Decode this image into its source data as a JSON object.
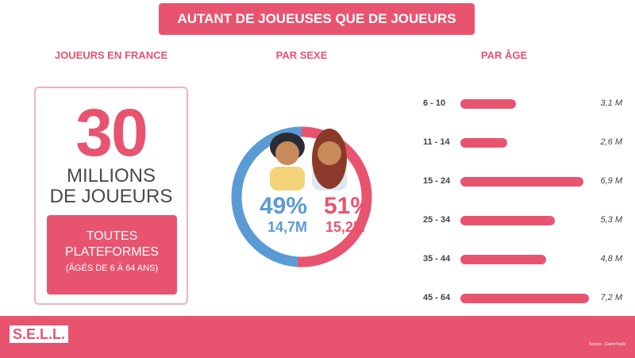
{
  "title": "AUTANT DE JOUEUSES QUE DE JOUEURS",
  "sections": {
    "france": "JOUEURS EN FRANCE",
    "sexe": "PAR SEXE",
    "age": "PAR ÂGE"
  },
  "france": {
    "number": "30",
    "line1": "MILLIONS",
    "line2": "DE JOUEURS",
    "platform1": "TOUTES",
    "platform2": "PLATEFORMES",
    "ages": "(ÂGÉS DE 6 À 64 ANS)"
  },
  "colors": {
    "pink": "#e8546f",
    "blue": "#5b9bd5"
  },
  "chart_data": [
    {
      "type": "pie",
      "variant": "donut",
      "categories": [
        "Hommes",
        "Femmes"
      ],
      "values": [
        49,
        51
      ],
      "labels": [
        "49%",
        "51%"
      ],
      "counts": [
        "14,7M",
        "15,2M"
      ],
      "icons": [
        "male-player-icon",
        "female-player-icon"
      ]
    },
    {
      "type": "bar",
      "orientation": "horizontal",
      "categories": [
        "6 - 10",
        "11 - 14",
        "15 - 24",
        "25 - 34",
        "35 - 44",
        "45 - 64"
      ],
      "values": [
        3.1,
        2.6,
        6.9,
        5.3,
        4.8,
        7.2
      ],
      "labels": [
        "3,1 M",
        "2,6 M",
        "6,9 M",
        "5,3 M",
        "4,8 M",
        "7,2 M"
      ]
    }
  ],
  "footer": {
    "logo": "S.E.L.L.",
    "source": "Source : GameTrack"
  }
}
